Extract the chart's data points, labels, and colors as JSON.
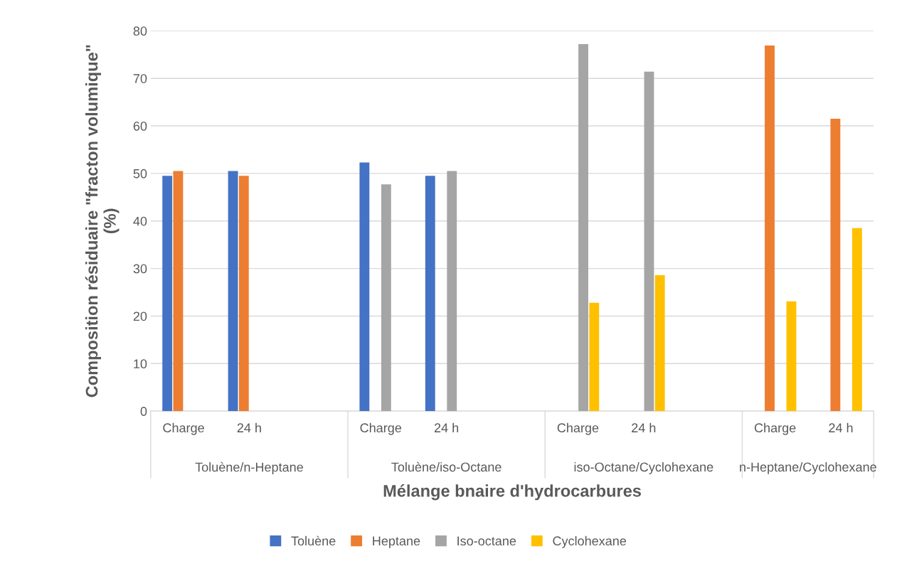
{
  "chart_data": {
    "type": "bar",
    "xlabel": "Mélange bnaire d'hydrocarbures",
    "ylabel": "Composition résiduaire \"fracton volumique\"\n(%)",
    "categories": [
      "Charge",
      "24 h",
      null,
      "Charge",
      "24 h",
      null,
      "Charge",
      "24 h",
      null,
      "Charge",
      "24 h"
    ],
    "series": [
      {
        "name": "Toluène",
        "color": "#4472c4",
        "values": [
          49.5,
          50.5,
          null,
          52.3,
          49.5,
          null,
          null,
          null,
          null,
          null,
          null
        ]
      },
      {
        "name": "Heptane",
        "color": "#ed7d31",
        "values": [
          50.5,
          49.5,
          null,
          null,
          null,
          null,
          null,
          null,
          null,
          76.9,
          61.5
        ]
      },
      {
        "name": "Iso-octane",
        "color": "#a5a5a5",
        "values": [
          null,
          null,
          null,
          47.7,
          50.5,
          null,
          77.2,
          71.4,
          null,
          null,
          null
        ]
      },
      {
        "name": "Cyclohexane",
        "color": "#ffc000",
        "values": [
          null,
          null,
          null,
          null,
          null,
          null,
          22.8,
          28.6,
          null,
          23.1,
          38.5
        ]
      }
    ],
    "annotations": [
      "Toluène/n-Heptane",
      "Toluène/iso-Octane",
      "iso-Octane/Cyclohexane",
      "n-Heptane/Cyclohexane"
    ],
    "ylim": [
      0,
      80
    ],
    "yticks": [
      0,
      10,
      20,
      30,
      40,
      50,
      60,
      70,
      80
    ],
    "grid": "y",
    "legend": "bottom"
  }
}
